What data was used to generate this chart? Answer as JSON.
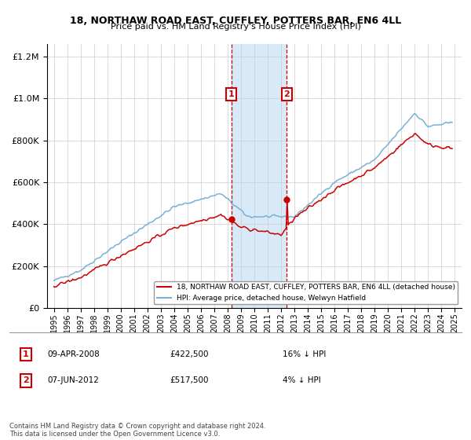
{
  "title": "18, NORTHAW ROAD EAST, CUFFLEY, POTTERS BAR, EN6 4LL",
  "subtitle": "Price paid vs. HM Land Registry's House Price Index (HPI)",
  "legend_line1": "18, NORTHAW ROAD EAST, CUFFLEY, POTTERS BAR, EN6 4LL (detached house)",
  "legend_line2": "HPI: Average price, detached house, Welwyn Hatfield",
  "sale1_label": "1",
  "sale1_date": "09-APR-2008",
  "sale1_price": "£422,500",
  "sale1_hpi": "16% ↓ HPI",
  "sale2_label": "2",
  "sale2_date": "07-JUN-2012",
  "sale2_price": "£517,500",
  "sale2_hpi": "4% ↓ HPI",
  "footer": "Contains HM Land Registry data © Crown copyright and database right 2024.\nThis data is licensed under the Open Government Licence v3.0.",
  "red_color": "#cc0000",
  "blue_color": "#7ab0d4",
  "shaded_region_color": "#d8eaf7",
  "sale1_x": 2008.27,
  "sale2_x": 2012.43,
  "ylim": [
    0,
    1260000
  ],
  "yticks": [
    0,
    200000,
    400000,
    600000,
    800000,
    1000000,
    1200000
  ],
  "xlim_start": 1994.5,
  "xlim_end": 2025.5
}
